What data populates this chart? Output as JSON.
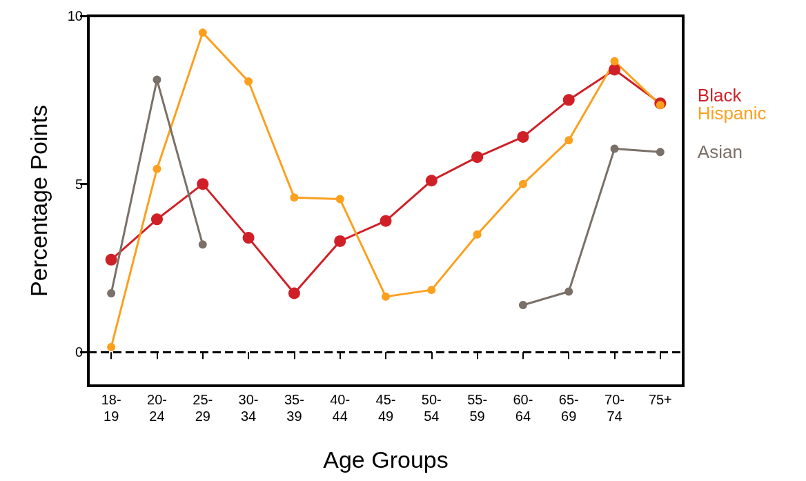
{
  "chart_data": {
    "type": "line",
    "ylabel": "Percentage Points",
    "xlabel": "Age Groups",
    "categories": [
      "18-\n19",
      "20-\n24",
      "25-\n29",
      "30-\n34",
      "35-\n39",
      "40-\n44",
      "45-\n49",
      "50-\n54",
      "55-\n59",
      "60-\n64",
      "65-\n69",
      "70-\n74",
      "75+"
    ],
    "series": [
      {
        "name": "Black",
        "color": "#d02027",
        "values": [
          2.75,
          3.95,
          5.0,
          3.4,
          1.75,
          3.3,
          3.9,
          5.1,
          5.8,
          6.4,
          7.5,
          8.4,
          7.4
        ]
      },
      {
        "name": "Hispanic",
        "color": "#fca01e",
        "values": [
          0.15,
          5.45,
          9.5,
          8.05,
          4.6,
          4.55,
          1.65,
          1.85,
          3.5,
          5.0,
          6.3,
          8.65,
          7.35
        ]
      },
      {
        "name": "Asian",
        "color": "#7a7068",
        "values": [
          1.75,
          8.1,
          3.2,
          null,
          null,
          null,
          null,
          null,
          null,
          1.4,
          1.8,
          6.05,
          5.95
        ]
      }
    ],
    "ylim": [
      -1,
      10
    ],
    "yticks": [
      0,
      5,
      10
    ],
    "ref_lines": [
      {
        "axis": "y",
        "value": 0,
        "line_style": "dashed",
        "color": "#000000"
      }
    ],
    "grid": false,
    "legend": false,
    "marker": "circle",
    "line_style": "solid"
  }
}
